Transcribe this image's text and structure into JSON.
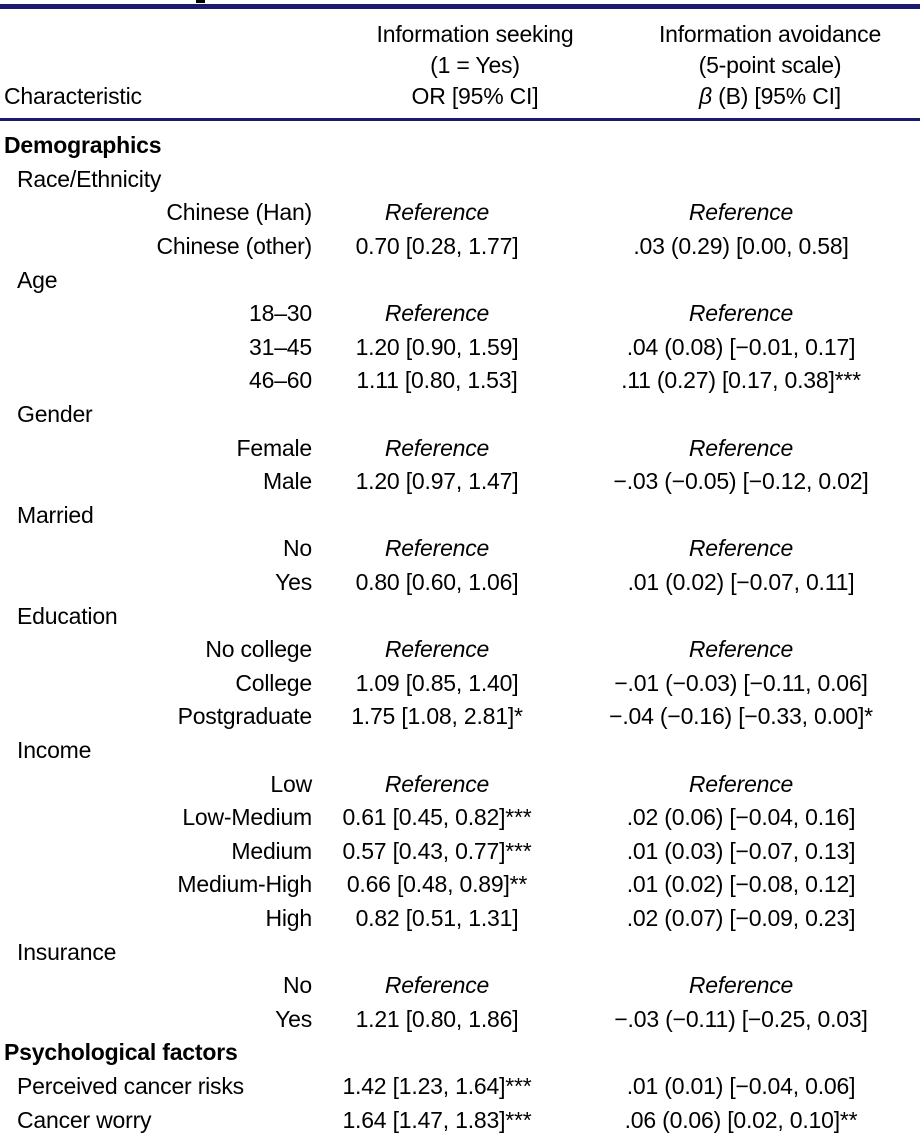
{
  "colors": {
    "rule": "#1b1a6e",
    "text": "#000000",
    "background": "#ffffff"
  },
  "table": {
    "header": {
      "characteristic": "Characteristic",
      "seeking_lines": [
        "Information seeking",
        "(1 = Yes)",
        "OR [95% CI]"
      ],
      "avoidance_lines": [
        "Information avoidance",
        "(5-point scale)"
      ],
      "avoidance_beta": "β",
      "avoidance_beta_rest": " (B) [95% CI]"
    },
    "reference_label": "Reference",
    "rows": [
      {
        "type": "section",
        "label": "Demographics",
        "seeking": "",
        "avoidance": ""
      },
      {
        "type": "group",
        "label": "Race/Ethnicity",
        "seeking": "",
        "avoidance": ""
      },
      {
        "type": "level",
        "label": "Chinese (Han)",
        "seeking": "Reference",
        "avoidance": "Reference"
      },
      {
        "type": "level",
        "label": "Chinese (other)",
        "seeking": "0.70 [0.28, 1.77]",
        "avoidance": ".03 (0.29) [0.00, 0.58]"
      },
      {
        "type": "group",
        "label": "Age",
        "seeking": "",
        "avoidance": ""
      },
      {
        "type": "level",
        "label": "18–30",
        "seeking": "Reference",
        "avoidance": "Reference"
      },
      {
        "type": "level",
        "label": "31–45",
        "seeking": "1.20 [0.90, 1.59]",
        "avoidance": ".04 (0.08) [−0.01, 0.17]"
      },
      {
        "type": "level",
        "label": "46–60",
        "seeking": "1.11 [0.80, 1.53]",
        "avoidance": ".11 (0.27) [0.17, 0.38]***"
      },
      {
        "type": "group",
        "label": "Gender",
        "seeking": "",
        "avoidance": ""
      },
      {
        "type": "level",
        "label": "Female",
        "seeking": "Reference",
        "avoidance": "Reference"
      },
      {
        "type": "level",
        "label": "Male",
        "seeking": "1.20 [0.97, 1.47]",
        "avoidance": "−.03 (−0.05) [−0.12, 0.02]"
      },
      {
        "type": "group",
        "label": "Married",
        "seeking": "",
        "avoidance": ""
      },
      {
        "type": "level",
        "label": "No",
        "seeking": "Reference",
        "avoidance": "Reference"
      },
      {
        "type": "level",
        "label": "Yes",
        "seeking": "0.80 [0.60, 1.06]",
        "avoidance": ".01 (0.02) [−0.07, 0.11]"
      },
      {
        "type": "group",
        "label": "Education",
        "seeking": "",
        "avoidance": ""
      },
      {
        "type": "level",
        "label": "No college",
        "seeking": "Reference",
        "avoidance": "Reference"
      },
      {
        "type": "level",
        "label": "College",
        "seeking": "1.09 [0.85, 1.40]",
        "avoidance": "−.01 (−0.03) [−0.11, 0.06]"
      },
      {
        "type": "level",
        "label": "Postgraduate",
        "seeking": "1.75 [1.08, 2.81]*",
        "avoidance": "−.04 (−0.16) [−0.33, 0.00]*"
      },
      {
        "type": "group",
        "label": "Income",
        "seeking": "",
        "avoidance": ""
      },
      {
        "type": "level",
        "label": "Low",
        "seeking": "Reference",
        "avoidance": "Reference"
      },
      {
        "type": "level",
        "label": "Low-Medium",
        "seeking": "0.61 [0.45, 0.82]***",
        "avoidance": ".02 (0.06) [−0.04, 0.16]"
      },
      {
        "type": "level",
        "label": "Medium",
        "seeking": "0.57 [0.43, 0.77]***",
        "avoidance": ".01 (0.03) [−0.07, 0.13]"
      },
      {
        "type": "level",
        "label": "Medium-High",
        "seeking": "0.66 [0.48, 0.89]**",
        "avoidance": ".01 (0.02) [−0.08, 0.12]"
      },
      {
        "type": "level",
        "label": "High",
        "seeking": "0.82 [0.51, 1.31]",
        "avoidance": ".02 (0.07) [−0.09, 0.23]"
      },
      {
        "type": "group",
        "label": "Insurance",
        "seeking": "",
        "avoidance": ""
      },
      {
        "type": "level",
        "label": "No",
        "seeking": "Reference",
        "avoidance": "Reference"
      },
      {
        "type": "level",
        "label": "Yes",
        "seeking": "1.21 [0.80, 1.86]",
        "avoidance": "−.03 (−0.11) [−0.25, 0.03]"
      },
      {
        "type": "section",
        "label": "Psychological factors",
        "seeking": "",
        "avoidance": ""
      },
      {
        "type": "var",
        "label": "Perceived cancer risks",
        "seeking": "1.42 [1.23, 1.64]***",
        "avoidance": ".01 (0.01) [−0.04, 0.06]"
      },
      {
        "type": "var",
        "label": "Cancer worry",
        "seeking": "1.64 [1.47, 1.83]***",
        "avoidance": ".06 (0.06) [0.02, 0.10]**"
      }
    ]
  }
}
